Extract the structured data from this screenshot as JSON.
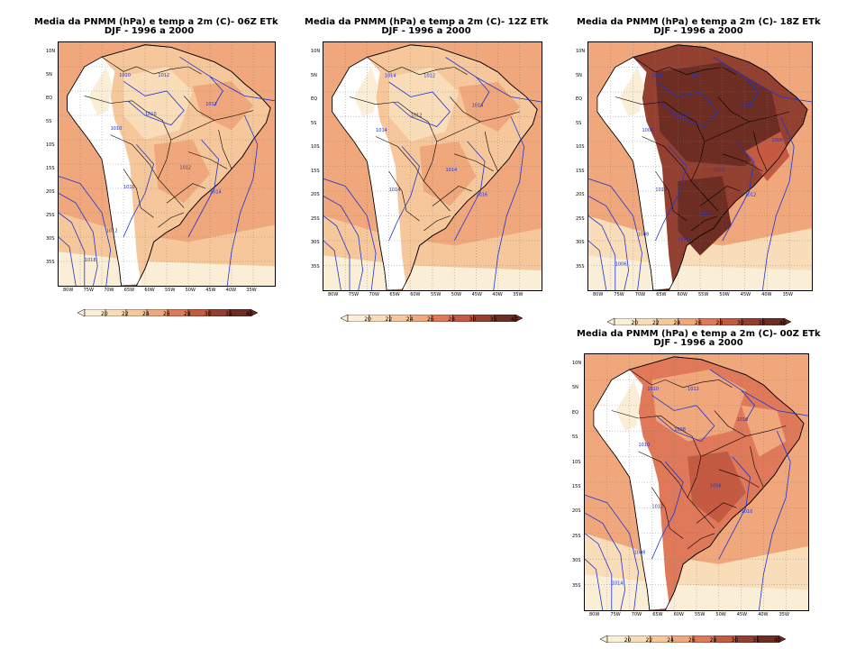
{
  "panels": [
    {
      "id": "p06",
      "title_line1": "Media da PNMM (hPa) e temp a 2m (C)- 06Z ETk",
      "title_line2": "DJF - 1996 a 2000",
      "intensity": "warm",
      "isobar_labels": [
        "1010",
        "1012",
        "1010",
        "1012",
        "1010",
        "1012",
        "1010",
        "1014",
        "1012",
        "1018"
      ]
    },
    {
      "id": "p12",
      "title_line1": "Media da PNMM (hPa) e temp a 2m (C)- 12Z ETk",
      "title_line2": "DJF - 1996 a 2000",
      "intensity": "warm",
      "isobar_labels": [
        "1014",
        "1012",
        "1012",
        "1014",
        "1014",
        "1014",
        "1014",
        "1016"
      ]
    },
    {
      "id": "p18",
      "title_line1": "Media da PNMM (hPa) e temp a 2m (C)- 18Z ETk",
      "title_line2": "DJF - 1996 a 2000",
      "intensity": "hot",
      "isobar_labels": [
        "1010",
        "1012",
        "1012",
        "1008",
        "1008",
        "1012",
        "1010",
        "1012",
        "1008",
        "1006",
        "1006",
        "1008",
        "1010"
      ]
    },
    {
      "id": "p00",
      "title_line1": "Media da PNMM (hPa) e temp a 2m (C)- 00Z ETk",
      "title_line2": "DJF - 1996 a 2000",
      "intensity": "medium",
      "isobar_labels": [
        "1010",
        "1012",
        "1008",
        "1010",
        "1010",
        "1008",
        "1012",
        "1010",
        "1008",
        "1014"
      ]
    }
  ],
  "y_axis_labels": [
    "10N",
    "5N",
    "EQ",
    "5S",
    "10S",
    "15S",
    "20S",
    "25S",
    "30S",
    "35S"
  ],
  "x_axis_labels": [
    "80W",
    "75W",
    "70W",
    "65W",
    "60W",
    "55W",
    "50W",
    "45W",
    "40W",
    "35W"
  ],
  "colorbar": {
    "labels": [
      "20",
      "22",
      "24",
      "26",
      "28",
      "30",
      "35",
      "40"
    ],
    "colors": [
      "#fbeed6",
      "#f9ddb8",
      "#f6c79a",
      "#f0a77c",
      "#e0795a",
      "#c35a41",
      "#944030",
      "#6d2d22"
    ]
  },
  "colors": {
    "isobar": "#1a35d6",
    "border": "#000000",
    "grid": "#777777",
    "ocean": "#f0a77c",
    "land_white": "#ffffff"
  }
}
